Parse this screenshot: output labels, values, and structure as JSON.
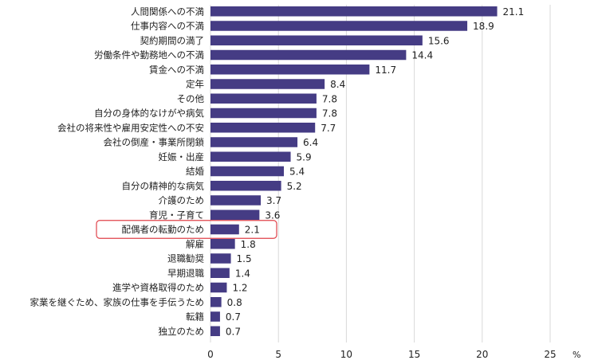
{
  "chart_data": {
    "type": "bar",
    "orientation": "horizontal",
    "categories": [
      "人間関係への不満",
      "仕事内容への不満",
      "契約期間の満了",
      "労働条件や勤務地への不満",
      "賃金への不満",
      "定年",
      "その他",
      "自分の身体的なけがや病気",
      "会社の将来性や雇用安定性への不安",
      "会社の倒産・事業所閉鎖",
      "妊娠・出産",
      "結婚",
      "自分の精神的な病気",
      "介護のため",
      "育児・子育て",
      "配偶者の転勤のため",
      "解雇",
      "退職勧奨",
      "早期退職",
      "進学や資格取得のため",
      "家業を継ぐため、家族の仕事を手伝うため",
      "転籍",
      "独立のため"
    ],
    "values": [
      21.1,
      18.9,
      15.6,
      14.4,
      11.7,
      8.4,
      7.8,
      7.8,
      7.7,
      6.4,
      5.9,
      5.4,
      5.2,
      3.7,
      3.6,
      2.1,
      1.8,
      1.5,
      1.4,
      1.2,
      0.8,
      0.7,
      0.7
    ],
    "value_labels": [
      "21.1",
      "18.9",
      "15.6",
      "14.4",
      "11.7",
      "8.4",
      "7.8",
      "7.8",
      "7.7",
      "6.4",
      "5.9",
      "5.4",
      "5.2",
      "3.7",
      "3.6",
      "2.1",
      "1.8",
      "1.5",
      "1.4",
      "1.2",
      "0.8",
      "0.7",
      "0.7"
    ],
    "highlighted_category": "配偶者の転勤のため",
    "xlim": [
      0,
      25
    ],
    "xticks": [
      0,
      5,
      10,
      15,
      20,
      25
    ],
    "xtick_labels": [
      "0",
      "5",
      "10",
      "15",
      "20",
      "25"
    ],
    "unit": "%",
    "grid": "vertical",
    "bar_color": "#453c84",
    "grid_color": "#d9d9d9",
    "highlight_color": "#e0424a"
  }
}
